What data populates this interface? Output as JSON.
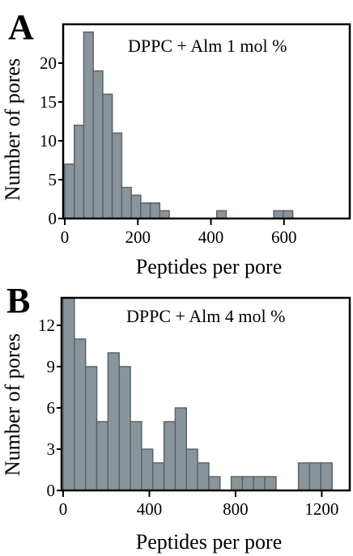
{
  "chart_data": [
    {
      "type": "bar",
      "panel_label": "A",
      "annotation": "DPPC + Alm 1 mol %",
      "xlabel": "Peptides per pore",
      "ylabel": "Number of pores",
      "xlim": [
        0,
        780
      ],
      "ylim": [
        0,
        25
      ],
      "bin_width": 26,
      "x_ticks": [
        "0",
        "200",
        "400",
        "600"
      ],
      "y_ticks": [
        "0",
        "5",
        "10",
        "15",
        "20"
      ],
      "x_tick_values": [
        0,
        200,
        400,
        600
      ],
      "y_tick_values": [
        0,
        5,
        10,
        15,
        20
      ],
      "bin_starts": [
        0,
        26,
        52,
        78,
        104,
        130,
        156,
        182,
        208,
        234,
        260,
        286,
        312,
        338,
        364,
        390,
        416,
        442,
        468,
        494,
        520,
        546,
        572,
        598
      ],
      "values": [
        7,
        12,
        24,
        19,
        16,
        11,
        4,
        3,
        2,
        2,
        1,
        0,
        0,
        0,
        0,
        0,
        1,
        0,
        0,
        0,
        0,
        0,
        1,
        1
      ]
    },
    {
      "type": "bar",
      "panel_label": "B",
      "annotation": "DPPC + Alm 4 mol %",
      "xlabel": "Peptides per pore",
      "ylabel": "Number of pores",
      "xlim": [
        0,
        1330
      ],
      "ylim": [
        0,
        14
      ],
      "bin_width": 52,
      "x_ticks": [
        "0",
        "400",
        "800",
        "1200"
      ],
      "y_ticks": [
        "0",
        "3",
        "6",
        "9",
        "12"
      ],
      "x_tick_values": [
        0,
        400,
        800,
        1200
      ],
      "y_tick_values": [
        0,
        3,
        6,
        9,
        12
      ],
      "bin_starts": [
        0,
        52,
        104,
        156,
        208,
        260,
        312,
        364,
        416,
        468,
        520,
        572,
        624,
        676,
        728,
        780,
        832,
        884,
        936,
        988,
        1040,
        1092,
        1144,
        1196
      ],
      "values": [
        14,
        11,
        9,
        5,
        10,
        9,
        5,
        3,
        2,
        5,
        6,
        3,
        2,
        1,
        0,
        1,
        1,
        1,
        1,
        0,
        0,
        2,
        2,
        2
      ]
    }
  ]
}
